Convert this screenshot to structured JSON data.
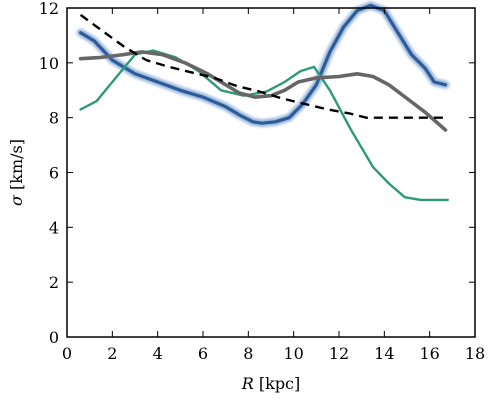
{
  "chart_data": {
    "type": "line",
    "xlabel_symbol": "R",
    "xlabel_unit": "[kpc]",
    "ylabel_symbol": "σ",
    "ylabel_unit": "[km/s]",
    "xlim": [
      0,
      18
    ],
    "ylim": [
      0,
      12
    ],
    "xticks": [
      "0",
      "2",
      "4",
      "6",
      "8",
      "10",
      "12",
      "14",
      "16",
      "18"
    ],
    "yticks": [
      "0",
      "2",
      "4",
      "6",
      "8",
      "10",
      "12"
    ],
    "grid": false,
    "series": [
      {
        "style": "blue-thick-blurred",
        "color": "#2c5c9a",
        "x": [
          0.6,
          1.2,
          2.0,
          3.0,
          4.0,
          5.0,
          6.0,
          7.0,
          7.6,
          8.2,
          8.6,
          9.2,
          9.8,
          10.4,
          11.0,
          11.6,
          12.2,
          12.8,
          13.4,
          14.0,
          14.6,
          15.2,
          15.8,
          16.2,
          16.7
        ],
        "y": [
          11.1,
          10.8,
          10.1,
          9.6,
          9.3,
          9.0,
          8.75,
          8.4,
          8.1,
          7.85,
          7.8,
          7.85,
          8.0,
          8.5,
          9.2,
          10.4,
          11.3,
          11.9,
          12.1,
          11.9,
          11.1,
          10.3,
          9.8,
          9.3,
          9.2
        ]
      },
      {
        "style": "green",
        "color": "#2e9b78",
        "x": [
          0.6,
          1.3,
          2.0,
          3.0,
          3.8,
          4.8,
          5.8,
          6.8,
          7.8,
          8.8,
          9.6,
          10.3,
          10.9,
          11.6,
          12.5,
          13.5,
          14.2,
          14.9,
          15.6,
          16.2,
          16.8
        ],
        "y": [
          8.3,
          8.6,
          9.3,
          10.3,
          10.45,
          10.2,
          9.7,
          9.0,
          8.8,
          8.95,
          9.3,
          9.7,
          9.85,
          9.0,
          7.6,
          6.2,
          5.6,
          5.1,
          5.0,
          5.0,
          5.0
        ]
      },
      {
        "style": "gray-thick",
        "color": "#666666",
        "x": [
          0.6,
          1.5,
          2.5,
          3.3,
          4.2,
          5.2,
          6.2,
          7.0,
          7.6,
          8.3,
          9.0,
          9.6,
          10.2,
          11.0,
          12.0,
          12.8,
          13.5,
          14.2,
          15.0,
          15.8,
          16.7
        ],
        "y": [
          10.15,
          10.2,
          10.3,
          10.4,
          10.3,
          10.0,
          9.6,
          9.2,
          8.9,
          8.75,
          8.8,
          9.0,
          9.3,
          9.45,
          9.5,
          9.6,
          9.5,
          9.2,
          8.7,
          8.2,
          7.55
        ]
      },
      {
        "style": "black-dashed",
        "color": "#000000",
        "x": [
          0.6,
          1.5,
          2.5,
          3.5,
          4.5,
          5.5,
          6.5,
          7.5,
          8.5,
          9.5,
          10.5,
          11.5,
          12.5,
          13.2,
          13.8,
          14.5,
          15.5,
          16.7
        ],
        "y": [
          11.75,
          11.2,
          10.6,
          10.1,
          9.85,
          9.65,
          9.45,
          9.15,
          8.95,
          8.7,
          8.5,
          8.3,
          8.15,
          8.0,
          8.0,
          8.0,
          8.0,
          8.0
        ]
      }
    ]
  }
}
